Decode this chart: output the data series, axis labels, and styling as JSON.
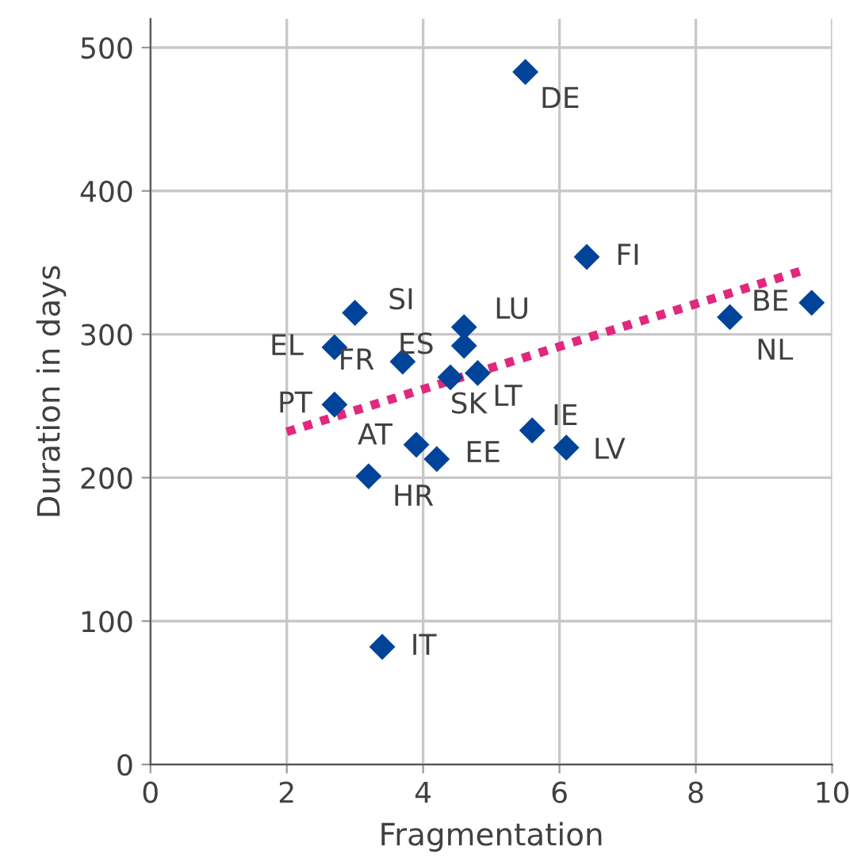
{
  "chart_data": {
    "type": "scatter",
    "xlabel": "Fragmentation",
    "ylabel": "Duration in days",
    "xlim": [
      0,
      10
    ],
    "xticks": [
      0,
      2,
      4,
      6,
      8,
      10
    ],
    "ylim": [
      0,
      520
    ],
    "yticks": [
      0,
      100,
      200,
      300,
      400,
      500
    ],
    "grid": true,
    "series": [
      {
        "color": "#00449a",
        "marker": "diamond",
        "x": [
          5.5,
          6.4,
          9.7,
          8.5,
          3.0,
          4.6,
          4.6,
          2.7,
          3.7,
          4.4,
          4.8,
          2.7,
          3.9,
          4.2,
          3.2,
          5.6,
          6.1,
          3.4
        ],
        "values": [
          483,
          354,
          322,
          312,
          315,
          305,
          292,
          291,
          281,
          270,
          273,
          251,
          223,
          213,
          201,
          233,
          221,
          82
        ]
      },
      {
        "type": "line",
        "color": "#e0287d",
        "line_style": "dotted",
        "x": [
          2,
          9.6
        ],
        "values": [
          232,
          345
        ]
      }
    ],
    "annotations": [
      {
        "text": "DE",
        "x": 5.5,
        "y": 483
      },
      {
        "text": "FI",
        "x": 6.4,
        "y": 354
      },
      {
        "text": "BE",
        "x": 9.7,
        "y": 322
      },
      {
        "text": "NL",
        "x": 8.5,
        "y": 312
      },
      {
        "text": "SI",
        "x": 3.0,
        "y": 315
      },
      {
        "text": "LU",
        "x": 4.6,
        "y": 305
      },
      {
        "text": "ES",
        "x": 4.6,
        "y": 292
      },
      {
        "text": "EL",
        "x": 2.7,
        "y": 291
      },
      {
        "text": "FR",
        "x": 3.7,
        "y": 281
      },
      {
        "text": "SK",
        "x": 4.4,
        "y": 270
      },
      {
        "text": "LT",
        "x": 4.8,
        "y": 273
      },
      {
        "text": "PT",
        "x": 2.7,
        "y": 251
      },
      {
        "text": "AT",
        "x": 3.9,
        "y": 223
      },
      {
        "text": "EE",
        "x": 4.2,
        "y": 213
      },
      {
        "text": "HR",
        "x": 3.2,
        "y": 201
      },
      {
        "text": "IE",
        "x": 5.6,
        "y": 233
      },
      {
        "text": "LV",
        "x": 6.1,
        "y": 221
      },
      {
        "text": "IT",
        "x": 3.4,
        "y": 82
      }
    ]
  }
}
